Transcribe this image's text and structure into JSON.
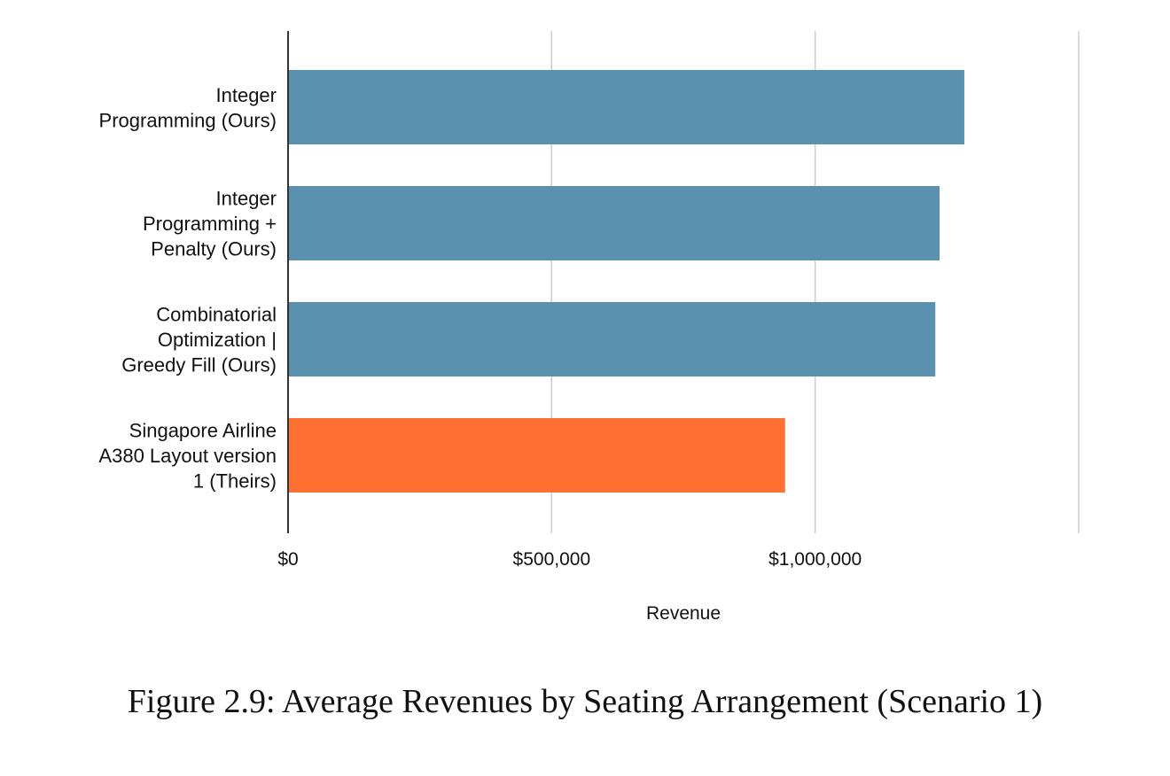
{
  "caption": "Figure 2.9: Average Revenues by Seating Arrangement (Scenario 1)",
  "chart_data": {
    "type": "bar",
    "orientation": "horizontal",
    "categories": [
      [
        "Integer",
        "Programming (Ours)"
      ],
      [
        "Integer",
        "Programming +",
        "Penalty (Ours)"
      ],
      [
        "Combinatorial",
        "Optimization |",
        "Greedy Fill (Ours)"
      ],
      [
        "Singapore Airline",
        "A380 Layout version",
        "1 (Theirs)"
      ]
    ],
    "values": [
      1283000,
      1236000,
      1228000,
      943000
    ],
    "colors": [
      "#5a91af",
      "#5a91af",
      "#5a91af",
      "#ff7033"
    ],
    "xlabel": "Revenue",
    "ylabel": "",
    "xlim": [
      0,
      1500000
    ],
    "xticks": [
      0,
      500000,
      1000000,
      1500000
    ],
    "xtick_labels": [
      "$0",
      "$500,000",
      "$1,000,000",
      ""
    ],
    "grid": true,
    "legend": "none"
  }
}
